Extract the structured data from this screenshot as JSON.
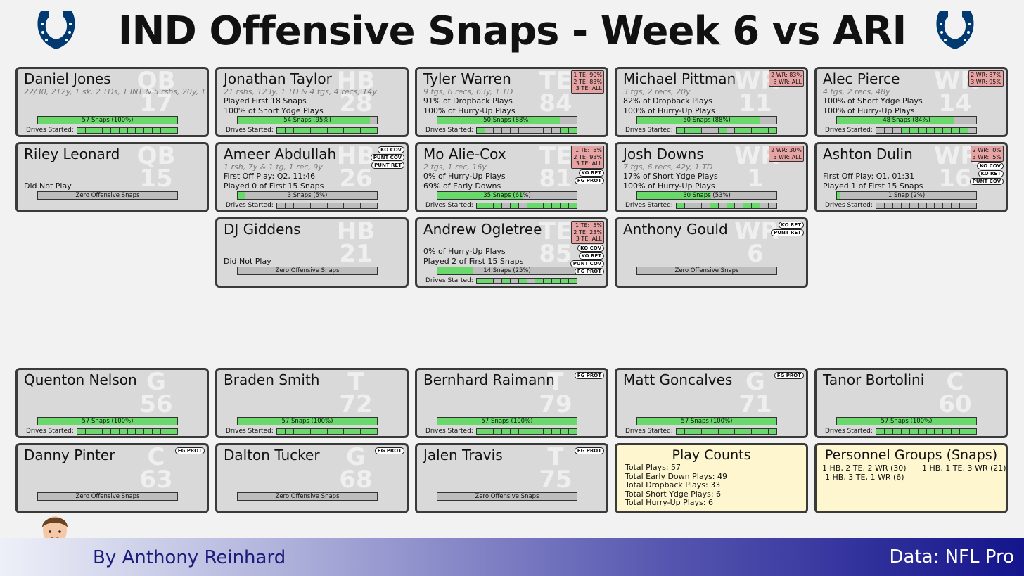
{
  "title": "IND Offensive Snaps - Week 6 vs ARI",
  "drives_label": "Drives Started:",
  "players": [
    {
      "name": "Daniel Jones",
      "pos": "QB",
      "num": "17",
      "stat": "22/30, 212y, 1 sk, 2 TDs, 1 INT & 5 rshs, 20y, 1 TD",
      "line1": "",
      "line2": "",
      "snaps_label": "57 Snaps (100%)",
      "snap_pct": 100,
      "drives": "111111111111"
    },
    {
      "name": "Jonathan Taylor",
      "pos": "HB",
      "num": "28",
      "stat": "21 rshs, 123y, 1 TD & 4 tgs, 4 recs, 14y",
      "line1": "Played First 18 Snaps",
      "line2": "100% of Short Ydge Plays",
      "snaps_label": "54 Snaps (95%)",
      "snap_pct": 95,
      "drives": "111111111111"
    },
    {
      "name": "Tyler Warren",
      "pos": "TE",
      "num": "84",
      "stat": "9 tgs, 6 recs, 63y, 1 TD",
      "line1": "91% of Dropback Plays",
      "line2": "100% of Hurry-Up Plays",
      "snaps_label": "50 Snaps (88%)",
      "snap_pct": 88,
      "drives": "100000000011",
      "box": "1 TE: 90%\n2 TE: 83%\n3 TE: ALL"
    },
    {
      "name": "Michael Pittman",
      "pos": "WR",
      "num": "11",
      "stat": "3 tgs, 2 recs, 20y",
      "line1": "82% of Dropback Plays",
      "line2": "100% of Hurry-Up Plays",
      "snaps_label": "50 Snaps (88%)",
      "snap_pct": 88,
      "drives": "111001011111",
      "box": "2 WR: 83%\n3 WR: ALL"
    },
    {
      "name": "Alec Pierce",
      "pos": "WR",
      "num": "14",
      "stat": "4 tgs, 2 recs, 48y",
      "line1": "100% of Short Ydge Plays",
      "line2": "100% of Hurry-Up Plays",
      "snaps_label": "48 Snaps (84%)",
      "snap_pct": 84,
      "drives": "000111111110",
      "box": "2 WR: 87%\n3 WR: 95%"
    },
    {
      "name": "Riley Leonard",
      "pos": "QB",
      "num": "15",
      "stat": "",
      "line1": "",
      "line2": "Did Not Play",
      "snaps_label": "Zero Offensive Snaps",
      "snap_pct": 0,
      "drives": ""
    },
    {
      "name": "Ameer Abdullah",
      "pos": "HB",
      "num": "26",
      "stat": "1 rsh, 7y & 1 tg, 1 rec, 9y",
      "line1": "First Off Play: Q2, 11:46",
      "line2": "Played 0 of First 15 Snaps",
      "snaps_label": "3 Snaps (5%)",
      "snap_pct": 5,
      "drives": "000000000000",
      "tags": [
        "KO COV",
        "PUNT COV",
        "PUNT RET"
      ]
    },
    {
      "name": "Mo Alie-Cox",
      "pos": "TE",
      "num": "81",
      "stat": "2 tgs, 1 rec, 16y",
      "line1": "0% of Hurry-Up Plays",
      "line2": "69% of Early Downs",
      "snaps_label": "35 Snaps (61%)",
      "snap_pct": 61,
      "drives": "111010111111",
      "box": "1 TE:  5%\n2 TE: 93%\n3 TE: ALL",
      "tags": [
        "KO RET",
        "FG PROT"
      ]
    },
    {
      "name": "Josh Downs",
      "pos": "WR",
      "num": "1",
      "stat": "7 tgs, 6 recs, 42y, 1 TD",
      "line1": "17% of Short Ydge Plays",
      "line2": "100% of Hurry-Up Plays",
      "snaps_label": "30 Snaps (53%)",
      "snap_pct": 53,
      "drives": "100010101100",
      "box": "2 WR: 30%\n3 WR: ALL"
    },
    {
      "name": "Ashton Dulin",
      "pos": "WR",
      "num": "16",
      "stat": "",
      "line1": "First Off Play: Q1, 01:31",
      "line2": "Played 1 of First 15 Snaps",
      "snaps_label": "1 Snap (2%)",
      "snap_pct": 2,
      "drives": "000000000000",
      "box": "2 WR:  0%\n3 WR:  5%",
      "tags": [
        "KO COV",
        "KO RET",
        "PUNT COV"
      ]
    },
    {
      "name": "DJ Giddens",
      "pos": "HB",
      "num": "21",
      "stat": "",
      "line1": "",
      "line2": "Did Not Play",
      "snaps_label": "Zero Offensive Snaps",
      "snap_pct": 0,
      "drives": ""
    },
    {
      "name": "Andrew Ogletree",
      "pos": "TE",
      "num": "85",
      "stat": "",
      "line1": "0% of Hurry-Up Plays",
      "line2": "Played 2 of First 15 Snaps",
      "snaps_label": "14 Snaps (25%)",
      "snap_pct": 25,
      "drives": "110101011111",
      "box": "1 TE:  5%\n2 TE: 23%\n3 TE: ALL",
      "tags": [
        "KO COV",
        "KO RET",
        "PUNT COV",
        "FG PROT"
      ]
    },
    {
      "name": "Anthony Gould",
      "pos": "WR",
      "num": "6",
      "stat": "",
      "line1": "",
      "line2": "",
      "snaps_label": "Zero Offensive Snaps",
      "snap_pct": 0,
      "drives": "",
      "tags": [
        "KO RET",
        "PUNT RET"
      ]
    },
    {
      "name": "Quenton Nelson",
      "pos": "G",
      "num": "56",
      "stat": "",
      "line1": "",
      "line2": "",
      "snaps_label": "57 Snaps (100%)",
      "snap_pct": 100,
      "drives": "111111111111"
    },
    {
      "name": "Braden Smith",
      "pos": "T",
      "num": "72",
      "stat": "",
      "line1": "",
      "line2": "",
      "snaps_label": "57 Snaps (100%)",
      "snap_pct": 100,
      "drives": "111111111111"
    },
    {
      "name": "Bernhard Raimann",
      "pos": "T",
      "num": "79",
      "stat": "",
      "line1": "",
      "line2": "",
      "snaps_label": "57 Snaps (100%)",
      "snap_pct": 100,
      "drives": "111111111111",
      "tags": [
        "FG PROT"
      ]
    },
    {
      "name": "Matt Goncalves",
      "pos": "G",
      "num": "71",
      "stat": "",
      "line1": "",
      "line2": "",
      "snaps_label": "57 Snaps (100%)",
      "snap_pct": 100,
      "drives": "111111111111",
      "tags": [
        "FG PROT"
      ]
    },
    {
      "name": "Tanor Bortolini",
      "pos": "C",
      "num": "60",
      "stat": "",
      "line1": "",
      "line2": "",
      "snaps_label": "57 Snaps (100%)",
      "snap_pct": 100,
      "drives": "111111111111"
    },
    {
      "name": "Danny Pinter",
      "pos": "C",
      "num": "63",
      "stat": "",
      "line1": "",
      "line2": "",
      "snaps_label": "Zero Offensive Snaps",
      "snap_pct": 0,
      "drives": "",
      "tags": [
        "FG PROT"
      ]
    },
    {
      "name": "Dalton Tucker",
      "pos": "G",
      "num": "68",
      "stat": "",
      "line1": "",
      "line2": "",
      "snaps_label": "Zero Offensive Snaps",
      "snap_pct": 0,
      "drives": "",
      "tags": [
        "FG PROT"
      ]
    },
    {
      "name": "Jalen Travis",
      "pos": "T",
      "num": "75",
      "stat": "",
      "line1": "",
      "line2": "",
      "snaps_label": "Zero Offensive Snaps",
      "snap_pct": 0,
      "drives": "",
      "tags": [
        "FG PROT"
      ]
    }
  ],
  "play_counts": {
    "title": "Play Counts",
    "lines": [
      "Total Plays: 57",
      "Total Early Down Plays: 49",
      "Total Dropback Plays: 33",
      "Total Short Ydge Plays: 6",
      "Total Hurry-Up Plays: 6"
    ]
  },
  "personnel": {
    "title": "Personnel Groups (Snaps)",
    "groups": [
      "1 HB, 2 TE, 2 WR (30)",
      "1 HB, 1 TE, 3 WR (21)",
      "1 HB, 3 TE, 1 WR (6)"
    ]
  },
  "footer": {
    "byline": "By Anthony Reinhard",
    "source": "Data: NFL Pro"
  },
  "colors": {
    "played": "#69d96b",
    "not_played": "#bdbdbd",
    "card": "#d9d9d9",
    "snap_box": "#e6a3a3",
    "summary": "#fdf6cf",
    "colts_blue": "#003a70"
  }
}
